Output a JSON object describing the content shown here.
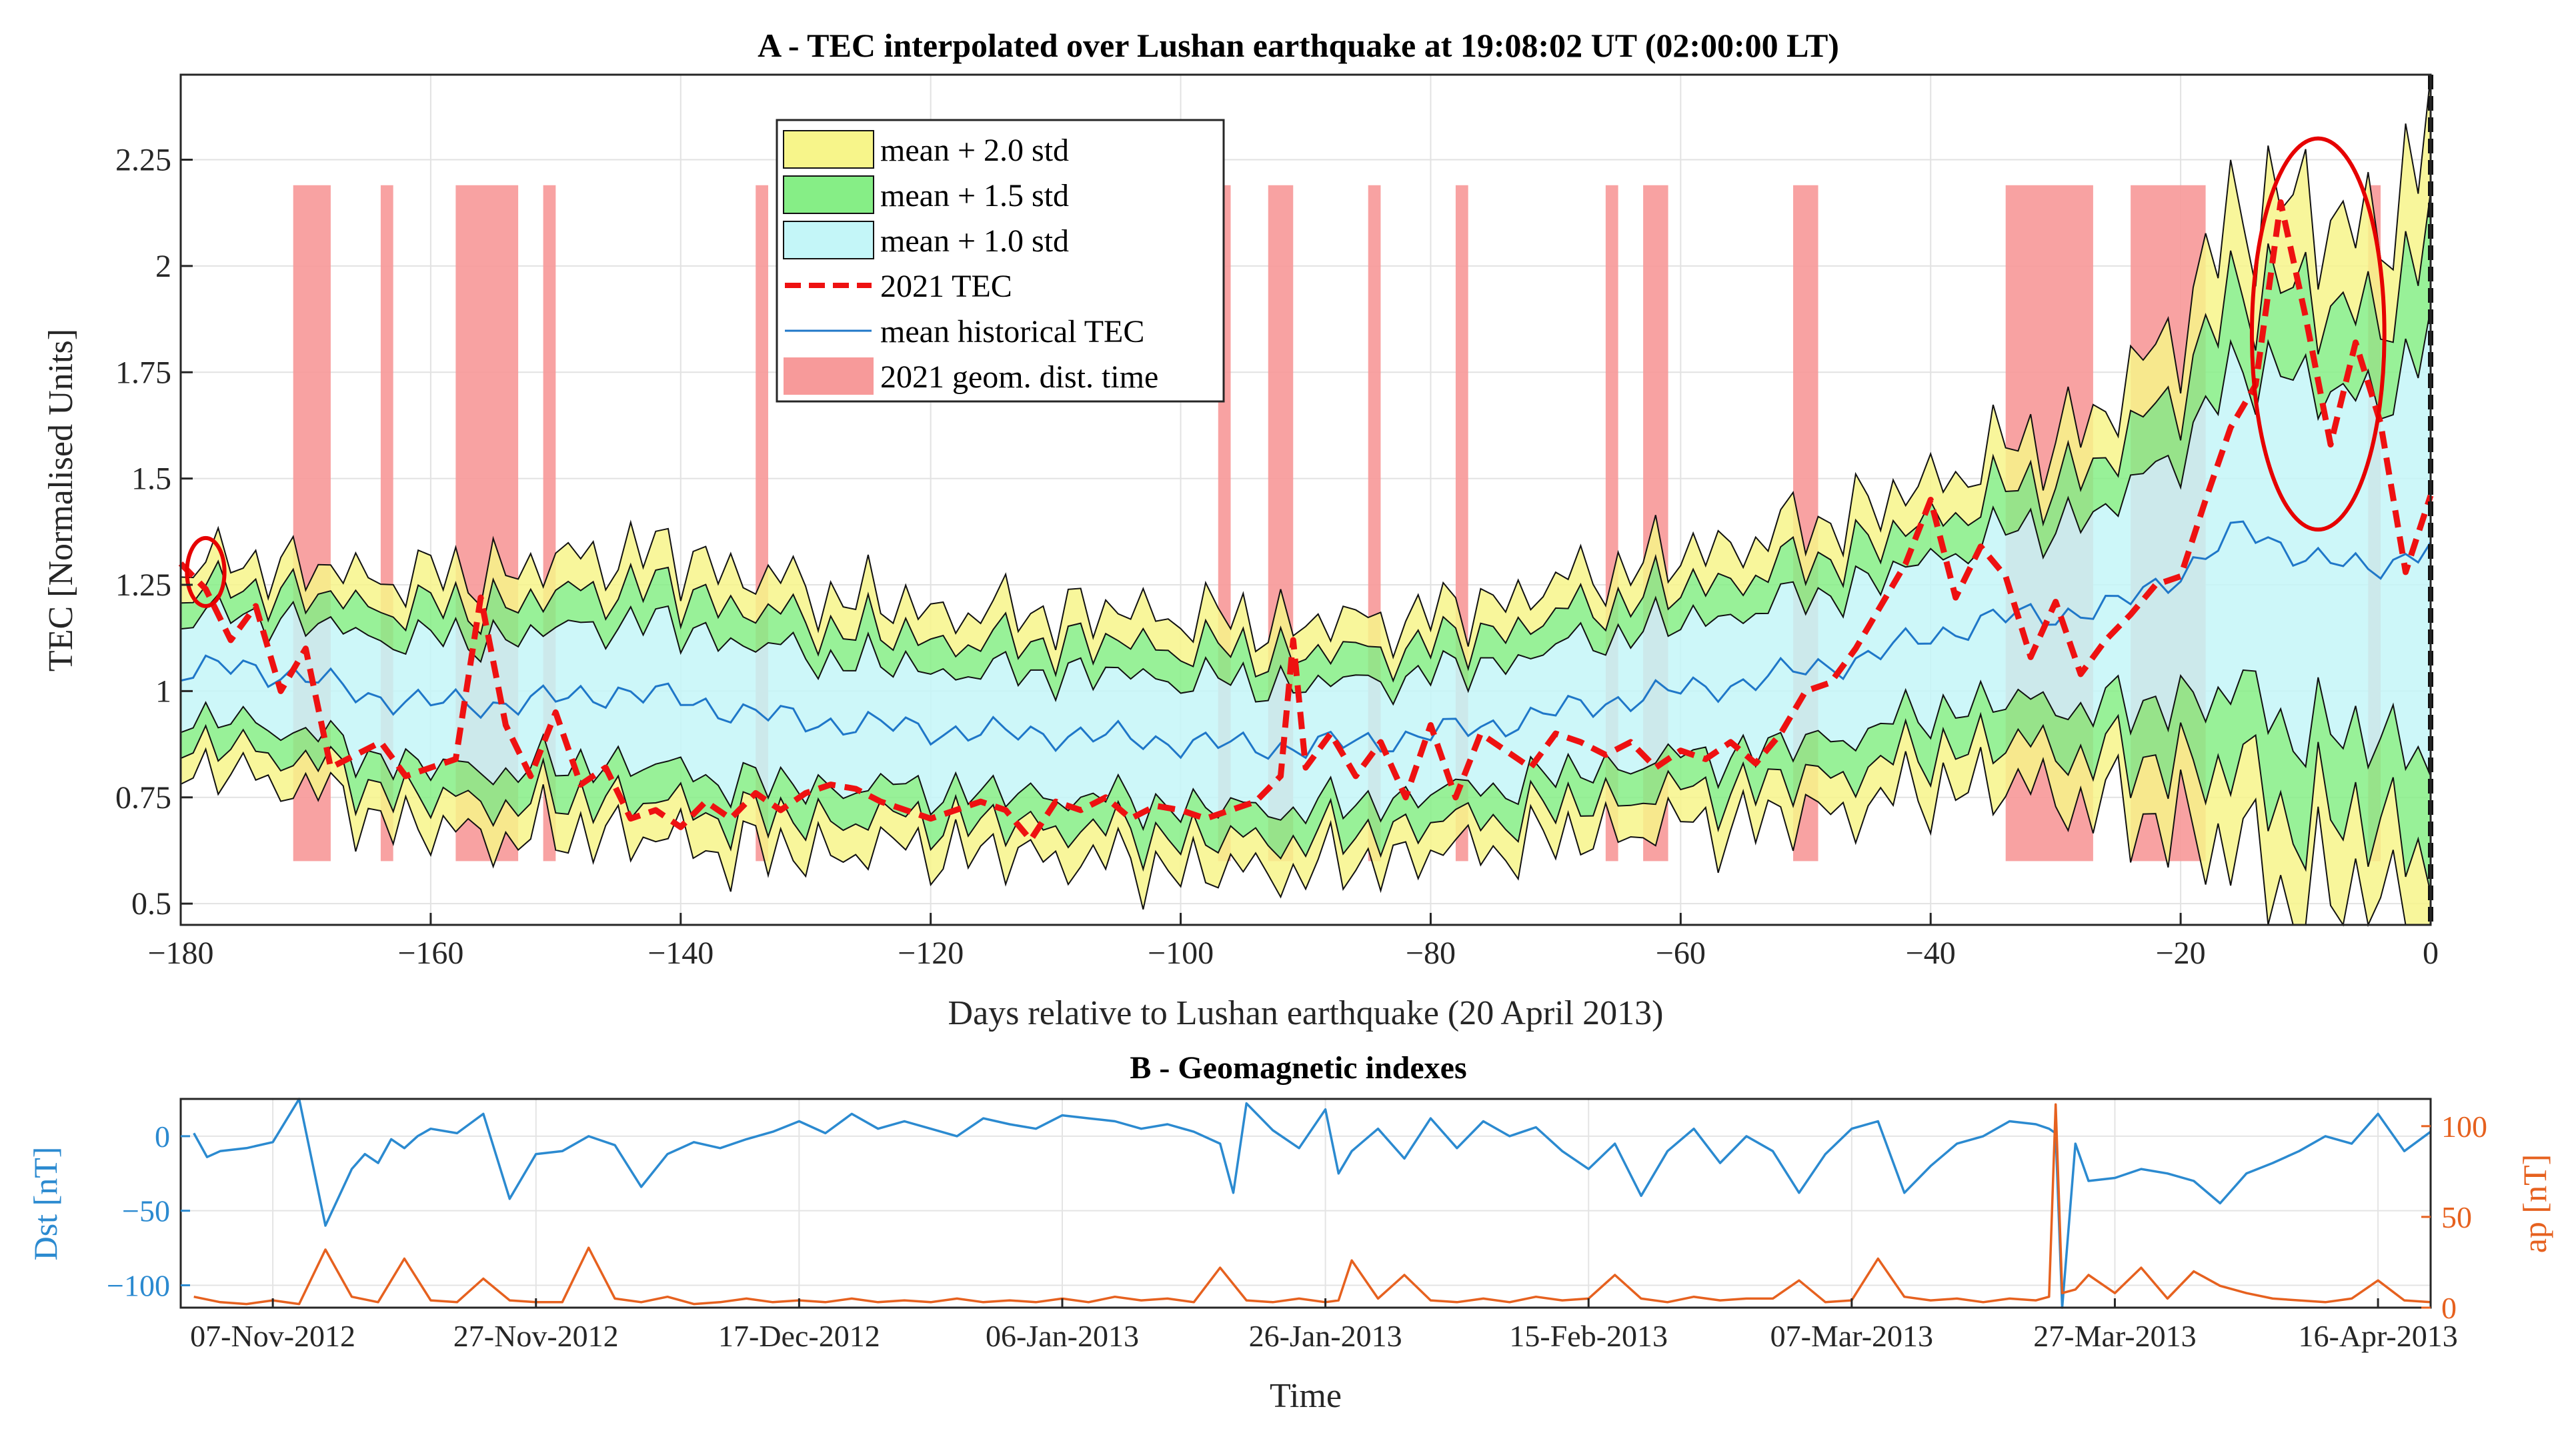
{
  "colors": {
    "yellow": "#f7f58a",
    "green": "#86ee86",
    "cyan": "#c4f6f8",
    "red_dash": "#ee1111",
    "mean_line": "#1f77c8",
    "geom_patch": "#f79a9a",
    "dst_line": "#2b8ad0",
    "ap_line": "#e6611f",
    "circle": "#e60000"
  },
  "chart_data": [
    {
      "id": "A",
      "type": "area",
      "title": "A - TEC interpolated over Lushan earthquake at 19:08:02 UT (02:00:00 LT)",
      "xlabel": "Days relative to Lushan earthquake (20 April 2013)",
      "ylabel": "TEC [Normalised Units]",
      "xlim": [
        -180,
        0
      ],
      "ylim": [
        0.45,
        2.45
      ],
      "grid": true,
      "legend_position": "top-center",
      "xticks": [
        -180,
        -160,
        -140,
        -120,
        -100,
        -80,
        -60,
        -40,
        -20,
        0
      ],
      "yticks": [
        0.5,
        0.75,
        1,
        1.25,
        1.5,
        1.75,
        2,
        2.25
      ],
      "ytick_labels": [
        "0.5",
        "0.75",
        "1",
        "1.25",
        "1.5",
        "1.75",
        "2",
        "2.25"
      ],
      "legend": [
        {
          "label": "mean + 2.0 std",
          "kind": "patch",
          "color": "#f7f58a"
        },
        {
          "label": "mean + 1.5 std",
          "kind": "patch",
          "color": "#86ee86"
        },
        {
          "label": "mean + 1.0 std",
          "kind": "patch",
          "color": "#c4f6f8"
        },
        {
          "label": "2021 TEC",
          "kind": "dash",
          "color": "#ee1111"
        },
        {
          "label": "mean historical TEC",
          "kind": "line",
          "color": "#1f77c8"
        },
        {
          "label": "2021 geom. dist. time",
          "kind": "patch",
          "color": "#f79a9a"
        }
      ],
      "mean_anchor_days": [
        -180,
        -175,
        -170,
        -165,
        -160,
        -155,
        -150,
        -145,
        -140,
        -135,
        -130,
        -125,
        -120,
        -115,
        -110,
        -105,
        -100,
        -95,
        -90,
        -85,
        -80,
        -75,
        -70,
        -65,
        -60,
        -55,
        -50,
        -45,
        -40,
        -35,
        -30,
        -25,
        -20,
        -15,
        -10,
        -5,
        0
      ],
      "mean_anchor_values": [
        1.04,
        1.06,
        1.03,
        0.99,
        0.97,
        0.97,
        0.98,
        1.0,
        0.98,
        0.95,
        0.93,
        0.92,
        0.91,
        0.9,
        0.9,
        0.89,
        0.88,
        0.87,
        0.87,
        0.88,
        0.9,
        0.92,
        0.95,
        0.98,
        1.0,
        1.02,
        1.05,
        1.08,
        1.13,
        1.17,
        1.18,
        1.2,
        1.28,
        1.38,
        1.32,
        1.28,
        1.35
      ],
      "std_anchor_days": [
        -180,
        -170,
        -160,
        -140,
        -120,
        -100,
        -80,
        -60,
        -40,
        -30,
        -25,
        -20,
        -15,
        -10,
        -5,
        0
      ],
      "std_anchor_values": [
        0.12,
        0.13,
        0.15,
        0.17,
        0.14,
        0.15,
        0.14,
        0.16,
        0.18,
        0.21,
        0.24,
        0.3,
        0.38,
        0.42,
        0.38,
        0.5
      ],
      "tec_2021_days": [
        -180,
        -178,
        -176,
        -174,
        -172,
        -170,
        -168,
        -166,
        -164,
        -162,
        -160,
        -158,
        -156,
        -154,
        -152,
        -150,
        -148,
        -146,
        -144,
        -142,
        -140,
        -138,
        -136,
        -134,
        -132,
        -130,
        -128,
        -126,
        -124,
        -122,
        -120,
        -118,
        -116,
        -114,
        -112,
        -110,
        -108,
        -106,
        -104,
        -102,
        -100,
        -98,
        -96,
        -94,
        -92,
        -91,
        -90,
        -88,
        -86,
        -84,
        -82,
        -80,
        -78,
        -76,
        -74,
        -72,
        -70,
        -68,
        -66,
        -64,
        -62,
        -60,
        -58,
        -56,
        -54,
        -52,
        -50,
        -48,
        -46,
        -44,
        -42,
        -40,
        -38,
        -36,
        -34,
        -32,
        -30,
        -28,
        -26,
        -24,
        -22,
        -20,
        -18,
        -16,
        -14,
        -12,
        -10,
        -8,
        -6,
        -4,
        -2,
        0
      ],
      "tec_2021_values": [
        1.3,
        1.24,
        1.12,
        1.2,
        1.0,
        1.1,
        0.82,
        0.85,
        0.88,
        0.8,
        0.82,
        0.84,
        1.22,
        0.92,
        0.8,
        0.95,
        0.78,
        0.82,
        0.7,
        0.72,
        0.68,
        0.74,
        0.7,
        0.76,
        0.72,
        0.76,
        0.78,
        0.77,
        0.74,
        0.72,
        0.7,
        0.72,
        0.74,
        0.72,
        0.65,
        0.74,
        0.72,
        0.75,
        0.7,
        0.73,
        0.72,
        0.7,
        0.72,
        0.74,
        0.8,
        1.12,
        0.82,
        0.9,
        0.8,
        0.88,
        0.75,
        0.92,
        0.75,
        0.9,
        0.86,
        0.82,
        0.9,
        0.88,
        0.85,
        0.88,
        0.82,
        0.86,
        0.84,
        0.88,
        0.83,
        0.9,
        1.0,
        1.02,
        1.1,
        1.2,
        1.3,
        1.45,
        1.22,
        1.34,
        1.27,
        1.08,
        1.21,
        1.04,
        1.12,
        1.18,
        1.25,
        1.27,
        1.45,
        1.62,
        1.72,
        2.15,
        1.88,
        1.58,
        1.82,
        1.63,
        1.28,
        1.46
      ],
      "geomagnetic_disturbance_intervals": [
        [
          -171,
          -168
        ],
        [
          -164,
          -163
        ],
        [
          -158,
          -153
        ],
        [
          -151,
          -150
        ],
        [
          -134,
          -133
        ],
        [
          -97,
          -96
        ],
        [
          -93,
          -91
        ],
        [
          -85,
          -84
        ],
        [
          -78,
          -77
        ],
        [
          -66,
          -65
        ],
        [
          -63,
          -61
        ],
        [
          -51,
          -49
        ],
        [
          -34,
          -27
        ],
        [
          -24,
          -18
        ],
        [
          -5,
          -4
        ]
      ],
      "geom_patch_ylim": [
        0.6,
        2.19
      ],
      "annotations": [
        {
          "kind": "ellipse",
          "center": [
            -178,
            1.28
          ],
          "radii_days": 1.5,
          "radii_value": 0.08
        },
        {
          "kind": "ellipse",
          "center": [
            -9,
            1.84
          ],
          "radii_days": 5.3,
          "radii_value": 0.46
        },
        {
          "kind": "vertical-dashed-line",
          "x": 0
        }
      ]
    },
    {
      "id": "B",
      "type": "line",
      "title": "B - Geomagnetic indexes",
      "xlabel": "Time",
      "ylabel": "Dst [nT]",
      "ylabel_right": "ap [nT]",
      "ylim": [
        -115,
        25
      ],
      "ylim_right": [
        0,
        115
      ],
      "yticks": [
        0,
        -50,
        -100
      ],
      "yticks_right": [
        100,
        50,
        0
      ],
      "xlim_days": [
        -171,
        0
      ],
      "xtick_days": [
        -164,
        -144,
        -124,
        -104,
        -84,
        -64,
        -44,
        -24,
        -4
      ],
      "xtick_labels": [
        "07-Nov-2012",
        "27-Nov-2012",
        "17-Dec-2012",
        "06-Jan-2013",
        "26-Jan-2013",
        "15-Feb-2013",
        "07-Mar-2013",
        "27-Mar-2013",
        "16-Apr-2013"
      ],
      "series": [
        {
          "name": "Dst",
          "axis": "left",
          "days": [
            -170,
            -169,
            -168,
            -166,
            -164,
            -162,
            -160,
            -158,
            -157,
            -156,
            -155,
            -154,
            -153,
            -152,
            -150,
            -148,
            -146,
            -144,
            -142,
            -140,
            -138,
            -136,
            -134,
            -132,
            -130,
            -128,
            -126,
            -124,
            -122,
            -120,
            -118,
            -116,
            -114,
            -112,
            -110,
            -108,
            -106,
            -104,
            -102,
            -100,
            -98,
            -96,
            -94,
            -92,
            -91,
            -90,
            -88,
            -86,
            -84,
            -83,
            -82,
            -80,
            -78,
            -76,
            -74,
            -72,
            -70,
            -68,
            -66,
            -64,
            -62,
            -60,
            -58,
            -56,
            -54,
            -52,
            -50,
            -48,
            -46,
            -44,
            -42,
            -40,
            -38,
            -36,
            -34,
            -32,
            -30,
            -29,
            -28.5,
            -28,
            -27,
            -26,
            -24,
            -22,
            -20,
            -18,
            -16,
            -14,
            -12,
            -10,
            -8,
            -6,
            -4,
            -2,
            0
          ],
          "values": [
            2,
            -14,
            -10,
            -8,
            -4,
            25,
            -60,
            -22,
            -12,
            -18,
            -2,
            -8,
            0,
            5,
            2,
            15,
            -42,
            -12,
            -10,
            0,
            -6,
            -34,
            -12,
            -4,
            -8,
            -2,
            3,
            10,
            2,
            15,
            5,
            10,
            5,
            0,
            12,
            8,
            5,
            14,
            12,
            10,
            5,
            8,
            3,
            -5,
            -38,
            22,
            4,
            -8,
            18,
            -25,
            -10,
            5,
            -15,
            12,
            -8,
            10,
            0,
            6,
            -10,
            -22,
            -5,
            -40,
            -10,
            5,
            -18,
            0,
            -10,
            -38,
            -12,
            5,
            10,
            -38,
            -20,
            -5,
            0,
            10,
            8,
            5,
            2,
            -120,
            -5,
            -30,
            -28,
            -22,
            -25,
            -30,
            -45,
            -25,
            -18,
            -10,
            0,
            -5,
            15,
            -10,
            3
          ],
          "color": "#2b8ad0"
        },
        {
          "name": "ap",
          "axis": "right",
          "days": [
            -170,
            -168,
            -166,
            -164,
            -162,
            -160,
            -158,
            -156,
            -154,
            -152,
            -150,
            -148,
            -146,
            -144,
            -142,
            -140,
            -138,
            -136,
            -134,
            -132,
            -130,
            -128,
            -126,
            -124,
            -122,
            -120,
            -118,
            -116,
            -114,
            -112,
            -110,
            -108,
            -106,
            -104,
            -102,
            -100,
            -98,
            -96,
            -94,
            -92,
            -90,
            -88,
            -86,
            -84,
            -83,
            -82,
            -80,
            -78,
            -76,
            -74,
            -72,
            -70,
            -68,
            -66,
            -64,
            -62,
            -60,
            -58,
            -56,
            -54,
            -52,
            -50,
            -48,
            -46,
            -44,
            -42,
            -40,
            -38,
            -36,
            -34,
            -32,
            -30,
            -29,
            -28.5,
            -28,
            -27,
            -26,
            -24,
            -22,
            -20,
            -18,
            -16,
            -14,
            -12,
            -10,
            -8,
            -6,
            -4,
            -2,
            0
          ],
          "values": [
            6,
            3,
            2,
            4,
            2,
            32,
            6,
            3,
            27,
            4,
            3,
            16,
            4,
            3,
            3,
            33,
            5,
            3,
            6,
            2,
            3,
            5,
            3,
            4,
            3,
            5,
            3,
            4,
            3,
            5,
            3,
            4,
            3,
            5,
            3,
            6,
            4,
            5,
            3,
            22,
            4,
            3,
            5,
            3,
            4,
            26,
            5,
            18,
            4,
            3,
            5,
            3,
            6,
            4,
            5,
            18,
            5,
            3,
            6,
            4,
            5,
            5,
            15,
            3,
            4,
            27,
            6,
            4,
            5,
            3,
            5,
            4,
            6,
            112,
            8,
            10,
            18,
            8,
            22,
            5,
            20,
            12,
            8,
            5,
            4,
            3,
            5,
            15,
            4,
            3
          ],
          "color": "#e6611f"
        }
      ]
    }
  ]
}
